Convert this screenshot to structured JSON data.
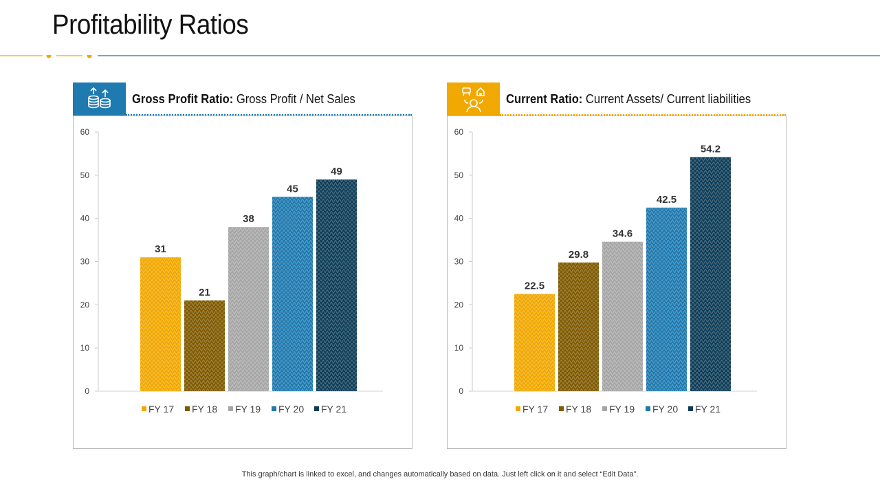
{
  "title": "Profitability Ratios",
  "footnote": "This graph/chart is linked to excel,  and changes automatically based on data. Just left click on it and select “Edit Data”.",
  "colors": {
    "accent": "#F1A800",
    "blue": "#1E7AAF",
    "rule_blue": "#2E6BA8",
    "series": [
      "#F1A800",
      "#7F5A00",
      "#A6A6A6",
      "#1E7AAF",
      "#0E3D58"
    ]
  },
  "panels": [
    {
      "label_bold": "Gross Profit Ratio:",
      "label_rest": " Gross Profit / Net Sales",
      "icon": "coins-stack-icon",
      "header_color": "#1E7AAF"
    },
    {
      "label_bold": "Current Ratio:",
      "label_rest": " Current Assets/ Current liabilities",
      "icon": "person-with-assets-icon",
      "header_color": "#F1A800"
    }
  ],
  "chart_data": [
    {
      "type": "bar",
      "title": "Gross Profit Ratio: Gross Profit / Net Sales",
      "categories": [
        "FY 17",
        "FY 18",
        "FY 19",
        "FY 20",
        "FY 21"
      ],
      "values": [
        31,
        21,
        38,
        45,
        49
      ],
      "value_labels": [
        "31",
        "21",
        "38",
        "45",
        "49"
      ],
      "ylim": [
        0,
        60
      ],
      "yticks": [
        "0",
        "10",
        "20",
        "30",
        "40",
        "50",
        "60"
      ],
      "legend": "bottom",
      "xlabel": "",
      "ylabel": ""
    },
    {
      "type": "bar",
      "title": "Current Ratio: Current Assets/ Current liabilities",
      "categories": [
        "FY 17",
        "FY 18",
        "FY 19",
        "FY 20",
        "FY 21"
      ],
      "values": [
        22.5,
        29.8,
        34.6,
        42.5,
        54.2
      ],
      "value_labels": [
        "22.5",
        "29.8",
        "34.6",
        "42.5",
        "54.2"
      ],
      "ylim": [
        0,
        60
      ],
      "yticks": [
        "0",
        "10",
        "20",
        "30",
        "40",
        "50",
        "60"
      ],
      "legend": "bottom",
      "xlabel": "",
      "ylabel": ""
    }
  ]
}
